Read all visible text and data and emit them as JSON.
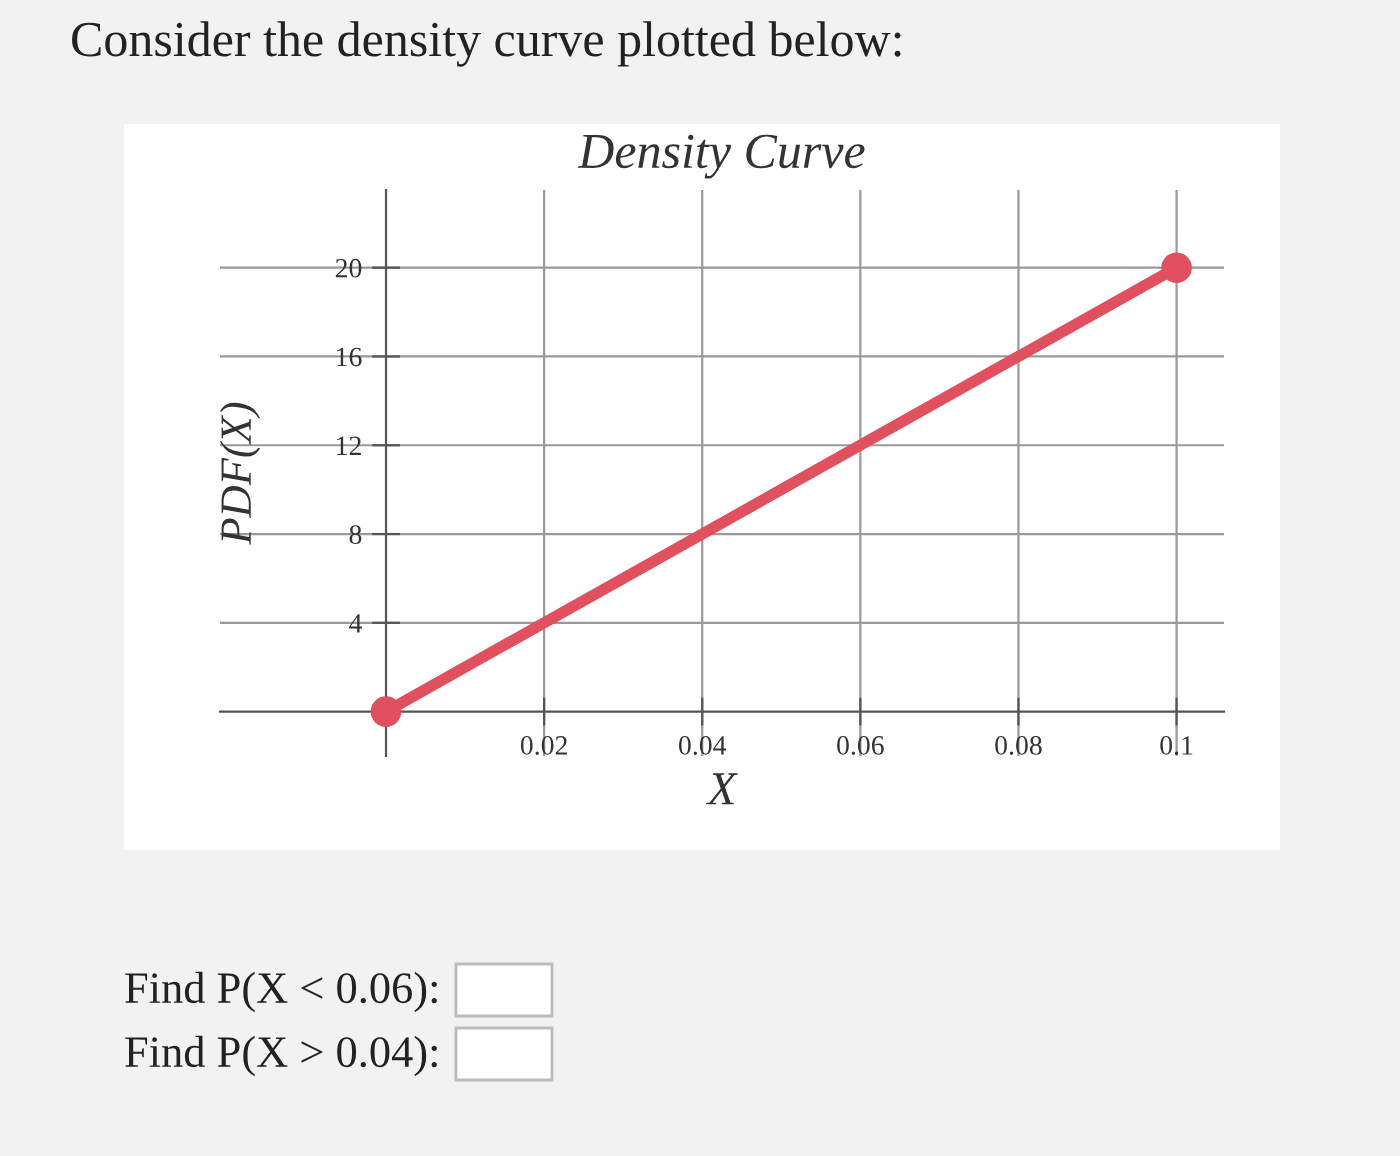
{
  "chart_data": {
    "type": "line",
    "title": "Density Curve",
    "xlabel": "X",
    "ylabel": "PDF(X)",
    "x": [
      0,
      0.1
    ],
    "series": [
      {
        "color": "#e0505e",
        "values": [
          0,
          20
        ]
      }
    ],
    "xlim": [
      -0.021,
      0.106
    ],
    "ylim": [
      -2,
      23.5
    ],
    "xticks": [
      0.02,
      0.04,
      0.06,
      0.08,
      0.1
    ],
    "yticks": [
      4,
      8,
      12,
      16,
      20
    ],
    "grid": true,
    "marker": "circle",
    "line_style": "solid",
    "annotations": [
      "Consider the density curve plotted below:",
      "Find P(X < 0.06):",
      "Find P(X > 0.04):"
    ]
  }
}
